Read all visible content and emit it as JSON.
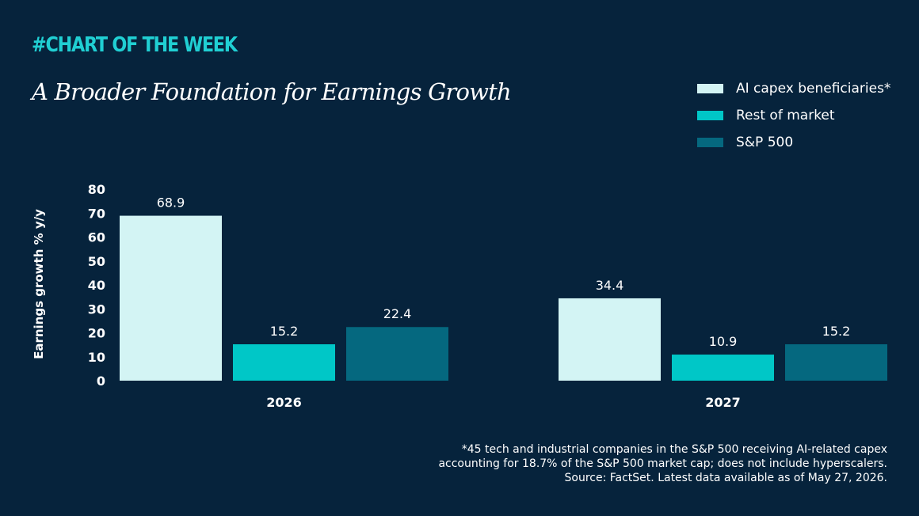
{
  "header": {
    "tag": "#CHART OF THE WEEK"
  },
  "footnote": {
    "lines": [
      "*45 tech and industrial companies in the S&P 500 receiving AI-related capex",
      "accounting for 18.7% of the S&P 500 market cap; does not include hyperscalers.",
      "Source: FactSet. Latest data available as of May 27, 2026."
    ]
  },
  "chart_data": {
    "type": "bar",
    "title": "A Broader Foundation for Earnings Growth",
    "ylabel": "Earnings growth % y/y",
    "xlabel": "",
    "categories": [
      "2026",
      "2027"
    ],
    "ylim": [
      0,
      80
    ],
    "yticks": [
      0,
      10,
      20,
      30,
      40,
      50,
      60,
      70,
      80
    ],
    "grid": false,
    "legend_position": "top-right",
    "series": [
      {
        "name": "AI capex beneficiaries*",
        "color": "#d3f4f4",
        "values": [
          68.9,
          34.4
        ],
        "labels": [
          "68.9",
          "34.4"
        ]
      },
      {
        "name": "Rest of market",
        "color": "#00c7c7",
        "values": [
          15.2,
          10.9
        ],
        "labels": [
          "15.2",
          "10.9"
        ]
      },
      {
        "name": "S&P 500",
        "color": "#05687f",
        "values": [
          22.4,
          15.2
        ],
        "labels": [
          "22.4",
          "15.2"
        ]
      }
    ]
  }
}
